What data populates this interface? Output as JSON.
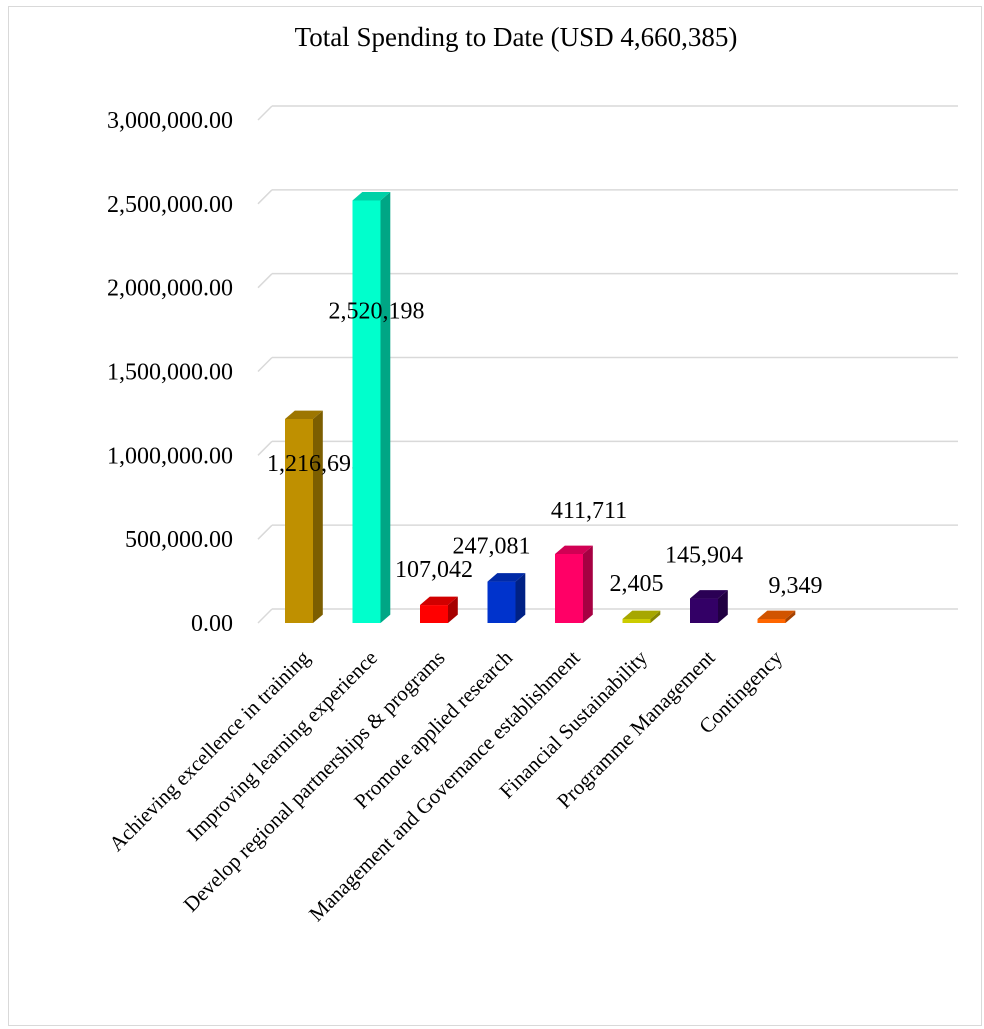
{
  "chart_data": {
    "type": "bar",
    "title": "Total Spending to Date (USD 4,660,385)",
    "xlabel": "",
    "ylabel": "",
    "categories": [
      "Achieving excellence in training",
      "Improving learning experience",
      "Develop regional partnerships & programs",
      "Promote applied research",
      "Management and Governance establishment",
      "Financial Sustainability",
      "Programme Management",
      "Contingency"
    ],
    "values": [
      1216695,
      2520198,
      107042,
      247081,
      411711,
      2405,
      145904,
      9349
    ],
    "data_labels": [
      "1,216,695",
      "2,520,198",
      "107,042",
      "247,081",
      "411,711",
      "2,405",
      "145,904",
      "9,349"
    ],
    "y_ticks": [
      "0.00",
      "500,000.00",
      "1,000,000.00",
      "1,500,000.00",
      "2,000,000.00",
      "2,500,000.00",
      "3,000,000.00"
    ],
    "ylim": [
      0,
      3000000
    ],
    "grid": true,
    "legend": "none",
    "style": "3d-column",
    "colors": [
      "#BF9000",
      "#00FFCC",
      "#FF0000",
      "#0033CC",
      "#FF0066",
      "#CCCC00",
      "#330066",
      "#FF6600"
    ]
  }
}
